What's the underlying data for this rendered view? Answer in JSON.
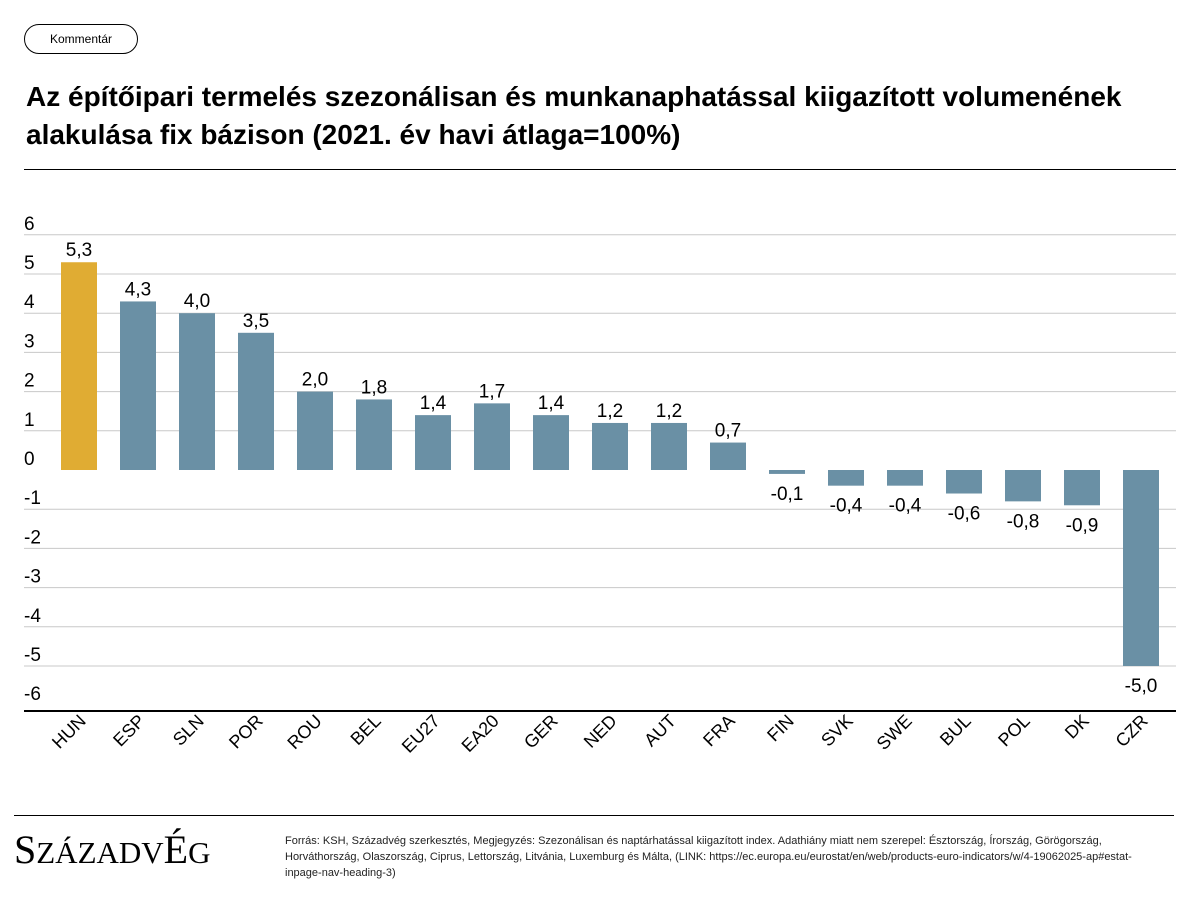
{
  "header": {
    "button_label": "Kommentár",
    "title": "Az építőipari termelés szezonálisan és munkanaphatással kiigazított volumenének alakulása fix bázison (2021. év havi átlaga=100%)"
  },
  "footer": {
    "logo_text": "SZÁZADVÉG",
    "source": "Forrás: KSH, Századvég szerkesztés, Megjegyzés: Szezonálisan és naptárhatással kiigazított index. Adathiány miatt nem szerepel: Észtország, Írország, Görögország, Horváthország, Olaszország, Ciprus, Lettország, Litvánia, Luxemburg és Málta, (LINK: https://ec.europa.eu/eurostat/en/web/products-euro-indicators/w/4-19062025-ap#estat-inpage-nav-heading-3)"
  },
  "chart_data": {
    "type": "bar",
    "categories": [
      "HUN",
      "ESP",
      "SLN",
      "POR",
      "ROU",
      "BEL",
      "EU27",
      "EA20",
      "GER",
      "NED",
      "AUT",
      "FRA",
      "FIN",
      "SVK",
      "SWE",
      "BUL",
      "POL",
      "DK",
      "CZR"
    ],
    "values": [
      5.3,
      4.3,
      4.0,
      3.5,
      2.0,
      1.8,
      1.4,
      1.7,
      1.4,
      1.2,
      1.2,
      0.7,
      -0.1,
      -0.4,
      -0.4,
      -0.6,
      -0.8,
      -0.9,
      -5.0
    ],
    "data_labels": [
      "5,3",
      "4,3",
      "4,0",
      "3,5",
      "2,0",
      "1,8",
      "1,4",
      "1,7",
      "1,4",
      "1,2",
      "1,2",
      "0,7",
      "-0,1",
      "-0,4",
      "-0,4",
      "-0,6",
      "-0,8",
      "-0,9",
      "-5,0"
    ],
    "y_ticks": [
      6,
      5,
      4,
      3,
      2,
      1,
      0,
      -1,
      -2,
      -3,
      -4,
      -5,
      -6
    ],
    "ylim": [
      -6,
      6
    ],
    "grid": true,
    "highlight_category": "HUN",
    "colors": {
      "bar": "#6a90a5",
      "highlight": "#e0ac33",
      "grid": "#c8c8c8",
      "axis": "#000000"
    }
  }
}
